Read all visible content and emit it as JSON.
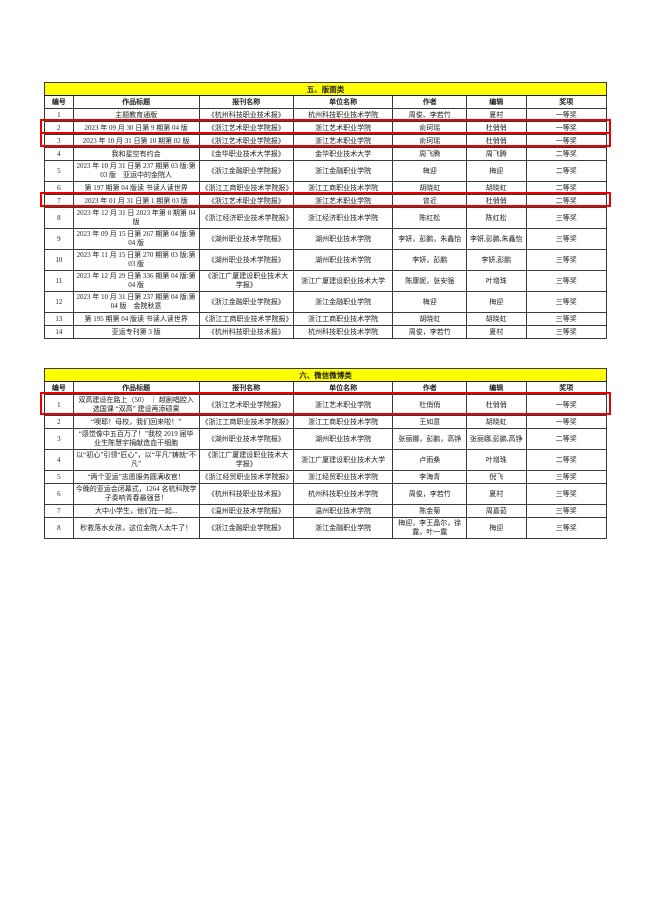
{
  "colors": {
    "section_header_bg": "#ffff00",
    "highlight_border": "#ee0000",
    "page_bg": "#ffffff",
    "table_border": "#1c1c1c"
  },
  "tables": [
    {
      "section_title": "五、版面类",
      "columns": [
        "编号",
        "作品标题",
        "报刊名称",
        "单位名称",
        "作者",
        "编辑",
        "奖项"
      ],
      "rows": [
        {
          "no": "1",
          "title": "主题教育通版",
          "publication": "《杭州科技职业技术报》",
          "organization": "杭州科技职业技术学院",
          "author": "周俊、李若竹",
          "editor": "夏村",
          "award": "一等奖",
          "highlighted": false
        },
        {
          "no": "2",
          "title": "2023 年 09 月 30 日第 9 期第 04 版",
          "publication": "《浙江艺术职业学院报》",
          "organization": "浙江艺术职业学院",
          "author": "俞珂瑶",
          "editor": "杜俏俏",
          "award": "一等奖",
          "highlighted": true
        },
        {
          "no": "3",
          "title": "2023 年 10 月 31 日第 10 期第 02 版",
          "publication": "《浙江艺术职业学院报》",
          "organization": "浙江艺术职业学院",
          "author": "俞珂瑶",
          "editor": "杜俏俏",
          "award": "一等奖",
          "highlighted": true
        },
        {
          "no": "4",
          "title": "我和星空有约会",
          "publication": "《金华职业技术大学报》",
          "organization": "金华职业技术大学",
          "author": "周飞腾",
          "editor": "周飞腾",
          "award": "二等奖",
          "highlighted": false
        },
        {
          "no": "5",
          "title": "2023 年 10 月 31 日第 237 期第 03 版:第 03 版　亚运中的金院人",
          "publication": "《浙江金融职业学院报》",
          "organization": "浙江金融职业学院",
          "author": "梅迎",
          "editor": "梅迎",
          "award": "二等奖",
          "highlighted": false
        },
        {
          "no": "6",
          "title": "第 197 期第 04 版读 书读人读世界",
          "publication": "《浙江工商职业技术学院报》",
          "organization": "浙江工商职业技术学院",
          "author": "胡晓虹",
          "editor": "胡晓虹",
          "award": "二等奖",
          "highlighted": false
        },
        {
          "no": "7",
          "title": "2023 年 01 月 31 日第 1 期第 03 版",
          "publication": "《浙江艺术职业学院报》",
          "organization": "浙江艺术职业学院",
          "author": "曾近",
          "editor": "杜俏俏",
          "award": "二等奖",
          "highlighted": true
        },
        {
          "no": "8",
          "title": "2023 年 12 月 31 日 2023 年第 8 期第 04 版",
          "publication": "《浙江经济职业技术学院报》",
          "organization": "浙江经济职业技术学院",
          "author": "陈红松",
          "editor": "陈红松",
          "award": "三等奖",
          "highlighted": false
        },
        {
          "no": "9",
          "title": "2023 年 09 月 15 日第 267 期第 04 版:第 04 版",
          "publication": "《湖州职业技术学院报》",
          "organization": "湖州职业技术学院",
          "author": "李妍，彭鹏，朱鑫怡",
          "editor": "李妍,彭鹏,朱鑫怡",
          "award": "三等奖",
          "highlighted": false
        },
        {
          "no": "10",
          "title": "2023 年 11 月 15 日第 270 期第 03 版:第 03 版",
          "publication": "《湖州职业技术学院报》",
          "organization": "湖州职业技术学院",
          "author": "李妍，彭鹏",
          "editor": "李妍,彭鹏",
          "award": "三等奖",
          "highlighted": false
        },
        {
          "no": "11",
          "title": "2023 年 12 月 29 日第 336 期第 04 版:第 04 版",
          "publication": "《浙江广厦建设职业技术大学报》",
          "organization": "浙江广厦建设职业技术大学",
          "author": "陈康妮，张安强",
          "editor": "叶增珠",
          "award": "三等奖",
          "highlighted": false
        },
        {
          "no": "12",
          "title": "2023 年 10 月 31 日第 237 期第 04 版:第 04 版　金院秋意",
          "publication": "《浙江金融职业学院报》",
          "organization": "浙江金融职业学院",
          "author": "梅迎",
          "editor": "梅迎",
          "award": "三等奖",
          "highlighted": false
        },
        {
          "no": "13",
          "title": "第 195 期第 04 版读 书读人读世界",
          "publication": "《浙江工商职业技术学院报》",
          "organization": "浙江工商职业技术学院",
          "author": "胡晓虹",
          "editor": "胡晓虹",
          "award": "三等奖",
          "highlighted": false
        },
        {
          "no": "14",
          "title": "亚运专刊第 3 版",
          "publication": "《杭州科技职业技术报》",
          "organization": "杭州科技职业技术学院",
          "author": "周俊，李若竹",
          "editor": "夏村",
          "award": "三等奖",
          "highlighted": false
        }
      ]
    },
    {
      "section_title": "六、微信微博类",
      "columns": [
        "编号",
        "作品标题",
        "报刊名称",
        "单位名称",
        "作者",
        "编辑",
        "奖项"
      ],
      "rows": [
        {
          "no": "1",
          "title": "双高建设在路上（50） ｜ 越剧唱腔入选国课 “双高” 建设再添硕果",
          "publication": "《浙江艺术职业学院报》",
          "organization": "浙江艺术职业学院",
          "author": "杜俏俏",
          "editor": "杜俏俏",
          "award": "一等奖",
          "highlighted": true
        },
        {
          "no": "2",
          "title": "“噢耶！母校，我们回来啦！”",
          "publication": "《浙江工商职业技术学院报》",
          "organization": "浙江工商职业技术学院",
          "author": "王如意",
          "editor": "胡晓虹",
          "award": "一等奖",
          "highlighted": false
        },
        {
          "no": "3",
          "title": "“感觉像中五百万了！”我校 2019 届毕业生陈慧宇捐献造血干细胞",
          "publication": "《湖州职业技术学院报》",
          "organization": "湖州职业技术学院",
          "author": "张丽娜，彭鹏，高铮",
          "editor": "张丽娜,彭鹏,高铮",
          "award": "二等奖",
          "highlighted": false
        },
        {
          "no": "4",
          "title": "以“初心”引领“匠心”，以“平凡”铸就“不凡”",
          "publication": "《浙江广厦建设职业技术大学报》",
          "organization": "浙江广厦建设职业技术大学",
          "author": "卢雨桑",
          "editor": "叶增珠",
          "award": "二等奖",
          "highlighted": false
        },
        {
          "no": "5",
          "title": "“两个亚运”志愿服务圆满收官！",
          "publication": "《浙江经贸职业技术学院报》",
          "organization": "浙江经贸职业技术学院",
          "author": "李海青",
          "editor": "倪飞",
          "award": "三等奖",
          "highlighted": false
        },
        {
          "no": "6",
          "title": "今晚的亚运会闭幕式，1264 名杭科院学子奏响青春最强音！",
          "publication": "《杭州科技职业技术报》",
          "organization": "杭州科技职业技术学院",
          "author": "周俊，李若竹",
          "editor": "夏村",
          "award": "三等奖",
          "highlighted": false
        },
        {
          "no": "7",
          "title": "大中小学生，他们在一起...",
          "publication": "《温州职业技术学院报》",
          "organization": "温州职业技术学院",
          "author": "陈金菊",
          "editor": "周嘉茹",
          "award": "三等奖",
          "highlighted": false
        },
        {
          "no": "8",
          "title": "秒救落水女孩，这位金院人太牛了！",
          "publication": "《浙江金融职业学院报》",
          "organization": "浙江金融职业学院",
          "author": "梅迎，李王晶尔，徐露，叶一露",
          "editor": "梅迎",
          "award": "三等奖",
          "highlighted": false
        }
      ]
    }
  ]
}
